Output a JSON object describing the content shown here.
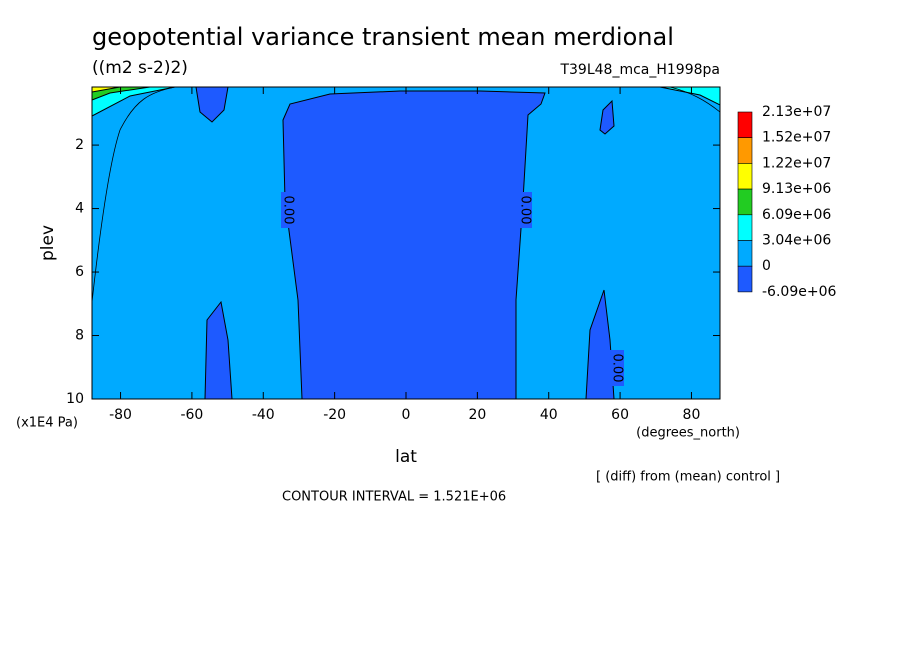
{
  "chart_data": {
    "type": "contour",
    "title": "geopotential variance transient mean merdional",
    "subtitle": "((m2 s-2)2)",
    "run_label": "T39L48_mca_H1998pa",
    "x_label": "lat",
    "x_unit": "(degrees_north)",
    "y_label": "plev",
    "y_unit": "(x1E4 Pa)",
    "note": "[ (diff) from (mean) control ]",
    "contour_interval": "CONTOUR INTERVAL = 1.521E+06",
    "contour_labels": [
      "0.00",
      "0.00",
      "0.00"
    ],
    "xlim": [
      -88,
      88
    ],
    "xticks": [
      -80,
      -60,
      -40,
      -20,
      0,
      20,
      40,
      60,
      80
    ],
    "ylim": [
      10,
      0.17
    ],
    "yticks": [
      2,
      4,
      6,
      8,
      10
    ],
    "levels": [
      {
        "value": 21300000,
        "label": "2.13e+07"
      },
      {
        "value": 15200000,
        "label": "1.52e+07"
      },
      {
        "value": 12200000,
        "label": "1.22e+07"
      },
      {
        "value": 9130000,
        "label": "9.13e+06"
      },
      {
        "value": 6090000,
        "label": "6.09e+06"
      },
      {
        "value": 3040000,
        "label": "3.04e+06"
      },
      0,
      {
        "value": -6090000,
        "label": "-6.09e+06"
      }
    ],
    "colors": [
      "#ff0000",
      "#ff9900",
      "#ffff00",
      "#22cc22",
      "#00ffff",
      "#00aaff",
      "#1e5aff"
    ]
  }
}
